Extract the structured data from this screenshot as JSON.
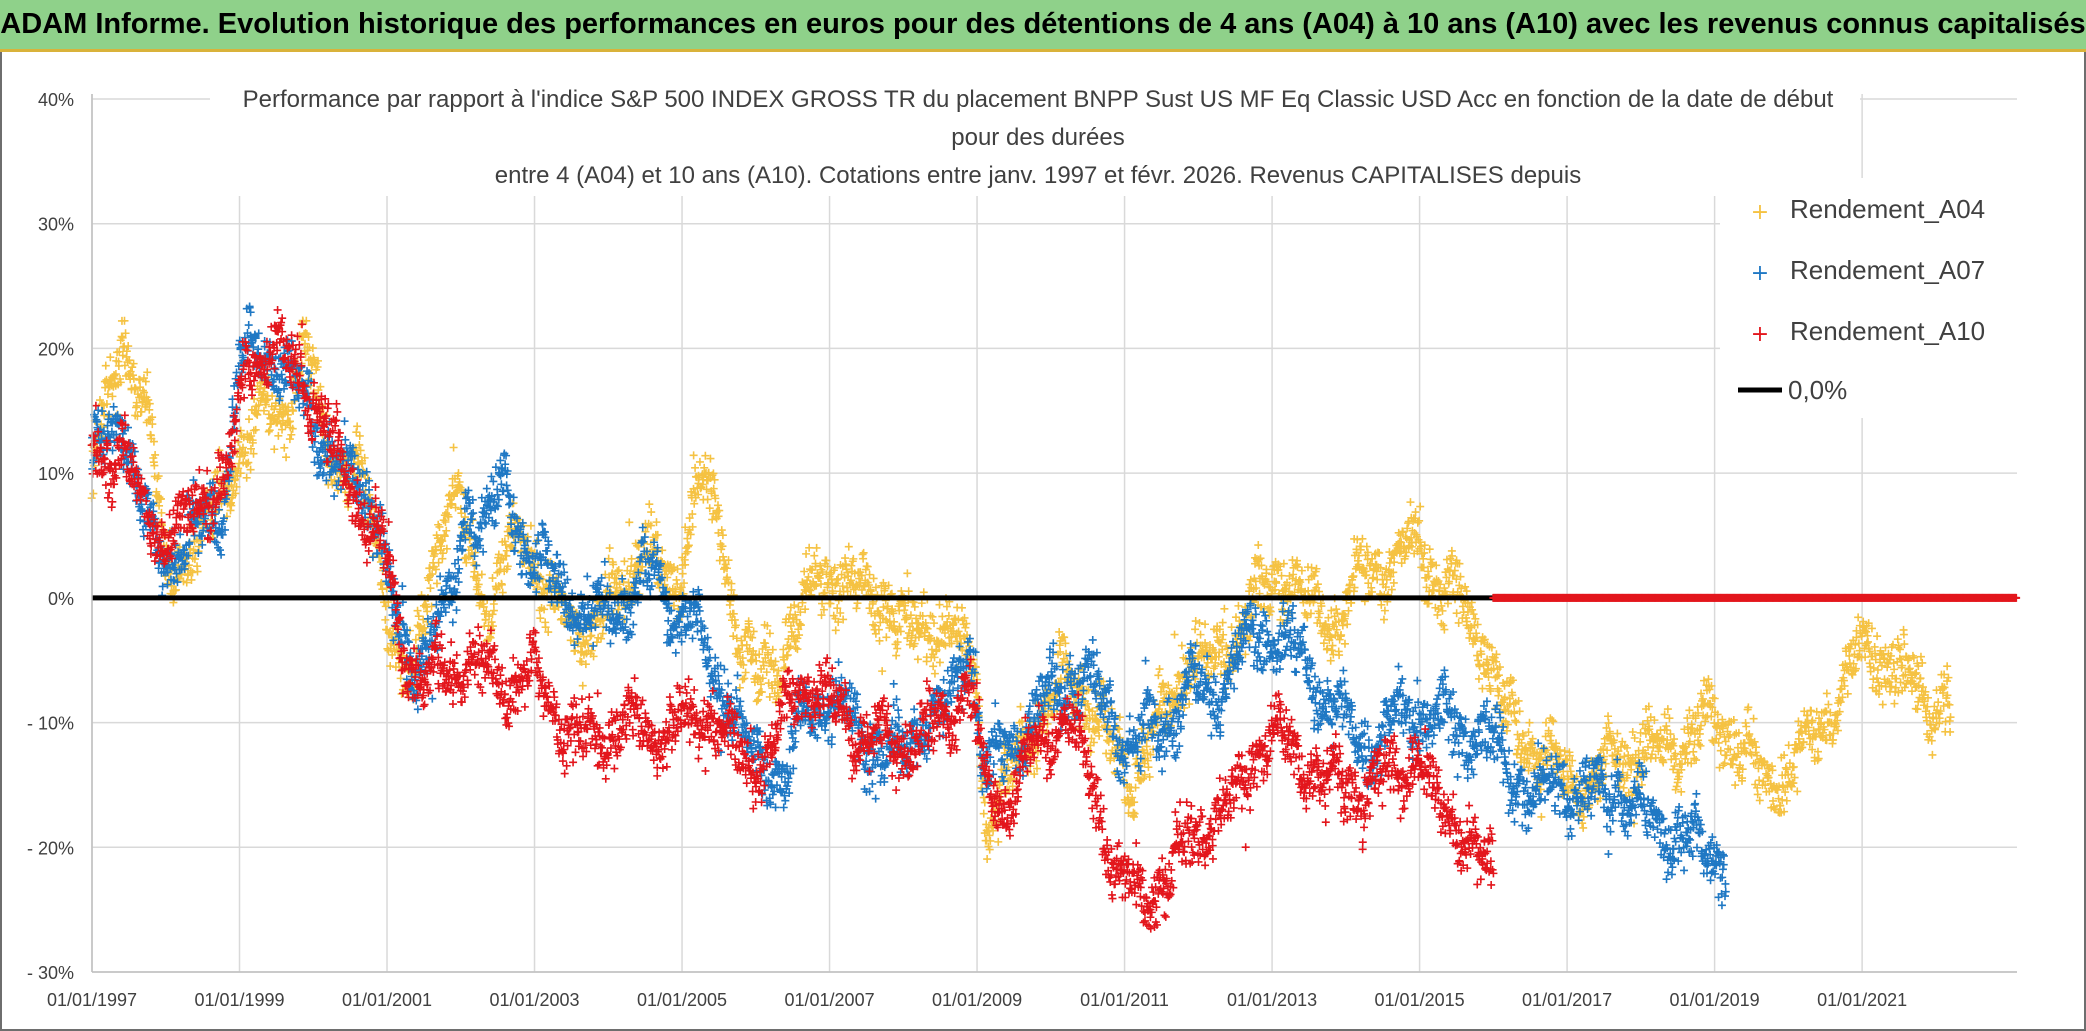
{
  "header": {
    "title": "ADAM Informe. Evolution historique des performances en euros pour des détentions de 4 ans (A04) à 10 ans (A10) avec les revenus connus capitalisés"
  },
  "chart_data": {
    "type": "scatter",
    "title_lines": [
      "Performance par rapport à l'indice S&P 500 INDEX GROSS TR  du placement BNPP Sust US MF Eq Classic USD Acc en fonction de la date de début",
      "pour des durées",
      "entre 4 (A04) et 10 ans (A10). Cotations entre janv. 1997 et févr. 2026. Revenus CAPITALISES depuis"
    ],
    "y_tick_labels": [
      "40%",
      "30%",
      "20%",
      "10%",
      "0%",
      "- 10%",
      "- 20%",
      "- 30%"
    ],
    "y_ticks": [
      40,
      30,
      20,
      10,
      0,
      -10,
      -20,
      -30
    ],
    "ylim": [
      -30,
      40
    ],
    "x_tick_labels": [
      "01/01/1997",
      "01/01/1999",
      "01/01/2001",
      "01/01/2003",
      "01/01/2005",
      "01/01/2007",
      "01/01/2009",
      "01/01/2011",
      "01/01/2013",
      "01/01/2015",
      "01/01/2017",
      "01/01/2019",
      "01/01/2021"
    ],
    "x_ticks": [
      1997,
      1999,
      2001,
      2003,
      2005,
      2007,
      2009,
      2011,
      2013,
      2015,
      2017,
      2019,
      2021
    ],
    "xlim": [
      1997,
      2023.1
    ],
    "marker": "+",
    "series": [
      {
        "name": "Rendement_A04",
        "color": "#f5c242",
        "end": 2022.2,
        "anchors": [
          [
            1997,
            12
          ],
          [
            1997.5,
            20
          ],
          [
            1997.8,
            14
          ],
          [
            1998.0,
            1
          ],
          [
            1998.3,
            4
          ],
          [
            1998.6,
            6
          ],
          [
            1998.9,
            10
          ],
          [
            1999.2,
            14
          ],
          [
            1999.6,
            15
          ],
          [
            1999.9,
            20
          ],
          [
            2000.2,
            12
          ],
          [
            2000.6,
            10
          ],
          [
            2000.9,
            4
          ],
          [
            2001.1,
            -4
          ],
          [
            2001.35,
            -8
          ],
          [
            2001.6,
            3
          ],
          [
            2001.9,
            8
          ],
          [
            2002.1,
            4
          ],
          [
            2002.4,
            -1
          ],
          [
            2002.6,
            3
          ],
          [
            2002.9,
            5
          ],
          [
            2003.2,
            0
          ],
          [
            2003.5,
            -3
          ],
          [
            2003.8,
            -2
          ],
          [
            2004.0,
            -1
          ],
          [
            2004.3,
            2
          ],
          [
            2004.5,
            5
          ],
          [
            2004.7,
            2
          ],
          [
            2004.9,
            0
          ],
          [
            2005.2,
            10
          ],
          [
            2005.5,
            6
          ],
          [
            2005.7,
            -1
          ],
          [
            2005.9,
            -5
          ],
          [
            2006.1,
            -7
          ],
          [
            2006.3,
            -5
          ],
          [
            2006.5,
            -2
          ],
          [
            2006.8,
            1
          ],
          [
            2007.1,
            2
          ],
          [
            2007.5,
            0
          ],
          [
            2007.8,
            0
          ],
          [
            2008.1,
            -3
          ],
          [
            2008.5,
            -2
          ],
          [
            2008.8,
            -4
          ],
          [
            2009.0,
            -6
          ],
          [
            2009.1,
            -18
          ],
          [
            2009.3,
            -17
          ],
          [
            2009.6,
            -12
          ],
          [
            2009.9,
            -9
          ],
          [
            2010.2,
            -6
          ],
          [
            2010.5,
            -8
          ],
          [
            2010.9,
            -13
          ],
          [
            2011.1,
            -14
          ],
          [
            2011.5,
            -10
          ],
          [
            2011.9,
            -4
          ],
          [
            2012.2,
            -6
          ],
          [
            2012.5,
            -3
          ],
          [
            2012.8,
            0
          ],
          [
            2013.2,
            2
          ],
          [
            2013.5,
            -1
          ],
          [
            2013.9,
            -2
          ],
          [
            2014.2,
            2
          ],
          [
            2014.6,
            3
          ],
          [
            2015.0,
            4
          ],
          [
            2015.3,
            1
          ],
          [
            2015.6,
            -1
          ],
          [
            2015.9,
            -4
          ],
          [
            2016.2,
            -10
          ],
          [
            2016.6,
            -12
          ],
          [
            2016.9,
            -14
          ],
          [
            2017.3,
            -15
          ],
          [
            2017.7,
            -13
          ],
          [
            2018.1,
            -12
          ],
          [
            2018.5,
            -12
          ],
          [
            2018.9,
            -10
          ],
          [
            2019.3,
            -11
          ],
          [
            2019.7,
            -15
          ],
          [
            2020.0,
            -14
          ],
          [
            2020.4,
            -11
          ],
          [
            2020.8,
            -6
          ],
          [
            2021.1,
            -4
          ],
          [
            2021.5,
            -6
          ],
          [
            2021.9,
            -8
          ],
          [
            2022.2,
            -9
          ]
        ]
      },
      {
        "name": "Rendement_A07",
        "color": "#1f78c4",
        "end": 2019.15,
        "anchors": [
          [
            1997,
            11
          ],
          [
            1997.4,
            15
          ],
          [
            1997.7,
            6
          ],
          [
            1998.0,
            3
          ],
          [
            1998.3,
            5
          ],
          [
            1998.6,
            6
          ],
          [
            1998.8,
            8
          ],
          [
            1999.0,
            19
          ],
          [
            1999.4,
            20
          ],
          [
            1999.7,
            18
          ],
          [
            2000.0,
            14
          ],
          [
            2000.3,
            11
          ],
          [
            2000.6,
            9
          ],
          [
            2000.9,
            7
          ],
          [
            2001.1,
            -2
          ],
          [
            2001.3,
            -6
          ],
          [
            2001.6,
            -3
          ],
          [
            2001.9,
            0
          ],
          [
            2002.1,
            8
          ],
          [
            2002.3,
            6
          ],
          [
            2002.6,
            9
          ],
          [
            2002.9,
            4
          ],
          [
            2003.2,
            2
          ],
          [
            2003.5,
            0
          ],
          [
            2003.8,
            -2
          ],
          [
            2004.0,
            -1
          ],
          [
            2004.3,
            0
          ],
          [
            2004.6,
            2
          ],
          [
            2004.9,
            -1
          ],
          [
            2005.2,
            -3
          ],
          [
            2005.4,
            -5
          ],
          [
            2005.7,
            -9
          ],
          [
            2005.9,
            -12
          ],
          [
            2006.1,
            -13
          ],
          [
            2006.4,
            -15
          ],
          [
            2006.6,
            -10
          ],
          [
            2006.9,
            -8
          ],
          [
            2007.2,
            -9
          ],
          [
            2007.6,
            -12
          ],
          [
            2007.9,
            -13
          ],
          [
            2008.2,
            -10
          ],
          [
            2008.6,
            -9
          ],
          [
            2008.9,
            -3
          ],
          [
            2009.1,
            -14
          ],
          [
            2009.4,
            -12
          ],
          [
            2009.7,
            -10
          ],
          [
            2010.0,
            -8
          ],
          [
            2010.4,
            -6
          ],
          [
            2010.8,
            -9
          ],
          [
            2011.0,
            -12
          ],
          [
            2011.3,
            -11
          ],
          [
            2011.6,
            -10
          ],
          [
            2011.9,
            -7
          ],
          [
            2012.2,
            -8
          ],
          [
            2012.5,
            -5
          ],
          [
            2012.8,
            -3
          ],
          [
            2013.1,
            -3
          ],
          [
            2013.4,
            -5
          ],
          [
            2013.7,
            -8
          ],
          [
            2014.0,
            -10
          ],
          [
            2014.3,
            -12
          ],
          [
            2014.6,
            -10
          ],
          [
            2015.0,
            -9
          ],
          [
            2015.4,
            -10
          ],
          [
            2015.8,
            -11
          ],
          [
            2016.1,
            -13
          ],
          [
            2016.5,
            -16
          ],
          [
            2016.9,
            -15
          ],
          [
            2017.3,
            -16
          ],
          [
            2017.7,
            -15
          ],
          [
            2018.0,
            -17
          ],
          [
            2018.4,
            -19
          ],
          [
            2018.8,
            -20
          ],
          [
            2019.15,
            -21
          ]
        ]
      },
      {
        "name": "Rendement_A10",
        "color": "#e3161c",
        "end": 2016.0,
        "anchors": [
          [
            1997,
            11
          ],
          [
            1997.4,
            12
          ],
          [
            1997.7,
            7
          ],
          [
            1998.0,
            5
          ],
          [
            1998.4,
            7
          ],
          [
            1998.7,
            9
          ],
          [
            1998.9,
            11
          ],
          [
            1999.1,
            19
          ],
          [
            1999.5,
            20
          ],
          [
            1999.8,
            18
          ],
          [
            2000.1,
            15
          ],
          [
            2000.4,
            10
          ],
          [
            2000.7,
            7
          ],
          [
            2001.0,
            3
          ],
          [
            2001.2,
            -4
          ],
          [
            2001.5,
            -7
          ],
          [
            2001.8,
            -6
          ],
          [
            2002.1,
            -5
          ],
          [
            2002.4,
            -6
          ],
          [
            2002.7,
            -7
          ],
          [
            2003.0,
            -6
          ],
          [
            2003.3,
            -9
          ],
          [
            2003.6,
            -12
          ],
          [
            2003.9,
            -11
          ],
          [
            2004.2,
            -10
          ],
          [
            2004.5,
            -11
          ],
          [
            2004.8,
            -11
          ],
          [
            2005.1,
            -10
          ],
          [
            2005.4,
            -9
          ],
          [
            2005.7,
            -12
          ],
          [
            2005.9,
            -14
          ],
          [
            2006.2,
            -12
          ],
          [
            2006.5,
            -8
          ],
          [
            2006.8,
            -7
          ],
          [
            2007.2,
            -10
          ],
          [
            2007.6,
            -11
          ],
          [
            2007.9,
            -12
          ],
          [
            2008.2,
            -11
          ],
          [
            2008.6,
            -10
          ],
          [
            2008.9,
            -6
          ],
          [
            2009.1,
            -15
          ],
          [
            2009.3,
            -17
          ],
          [
            2009.6,
            -14
          ],
          [
            2009.9,
            -12
          ],
          [
            2010.2,
            -9
          ],
          [
            2010.5,
            -14
          ],
          [
            2010.8,
            -20
          ],
          [
            2011.0,
            -23
          ],
          [
            2011.3,
            -24
          ],
          [
            2011.6,
            -22
          ],
          [
            2011.9,
            -19
          ],
          [
            2012.2,
            -18
          ],
          [
            2012.5,
            -16
          ],
          [
            2012.8,
            -12
          ],
          [
            2013.1,
            -11
          ],
          [
            2013.4,
            -13
          ],
          [
            2013.7,
            -15
          ],
          [
            2014.0,
            -15
          ],
          [
            2014.3,
            -16
          ],
          [
            2014.6,
            -14
          ],
          [
            2014.9,
            -13
          ],
          [
            2015.2,
            -16
          ],
          [
            2015.5,
            -18
          ],
          [
            2015.8,
            -21
          ],
          [
            2016.0,
            -22
          ]
        ]
      }
    ],
    "zero_markers": {
      "series": "Rendement_A10",
      "from": 2016.0,
      "to": 2023.1,
      "value": 0
    },
    "reference_line": {
      "name": "0,0%",
      "value": 0,
      "color": "#000000"
    }
  }
}
